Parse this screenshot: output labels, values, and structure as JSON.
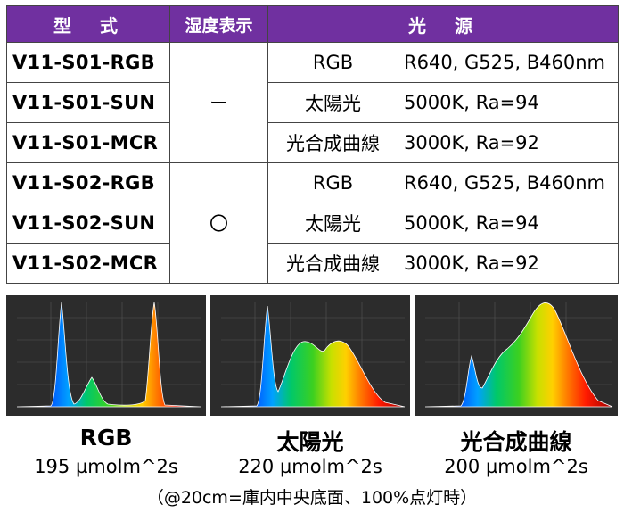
{
  "table": {
    "headers": {
      "model": "型　式",
      "humidity": "湿度表示",
      "light_source": "光　源"
    },
    "groups": [
      {
        "humidity": "ー",
        "rows": [
          {
            "model": "V11-S01-RGB",
            "source": "RGB",
            "spec": "R640, G525, B460nm"
          },
          {
            "model": "V11-S01-SUN",
            "source": "太陽光",
            "spec": "5000K, Ra=94"
          },
          {
            "model": "V11-S01-MCR",
            "source": "光合成曲線",
            "spec": "3000K, Ra=92"
          }
        ]
      },
      {
        "humidity": "〇",
        "rows": [
          {
            "model": "V11-S02-RGB",
            "source": "RGB",
            "spec": "R640, G525, B460nm"
          },
          {
            "model": "V11-S02-SUN",
            "source": "太陽光",
            "spec": "5000K, Ra=94"
          },
          {
            "model": "V11-S02-MCR",
            "source": "光合成曲線",
            "spec": "3000K, Ra=92"
          }
        ]
      }
    ]
  },
  "spectra": [
    {
      "name": "RGB",
      "ppfd": "195 µmolm^2s"
    },
    {
      "name": "太陽光",
      "ppfd": "220 µmolm^2s"
    },
    {
      "name": "光合成曲線",
      "ppfd": "200 µmolm^2s"
    }
  ],
  "note": "（@20cm=庫内中央底面、100%点灯時）"
}
